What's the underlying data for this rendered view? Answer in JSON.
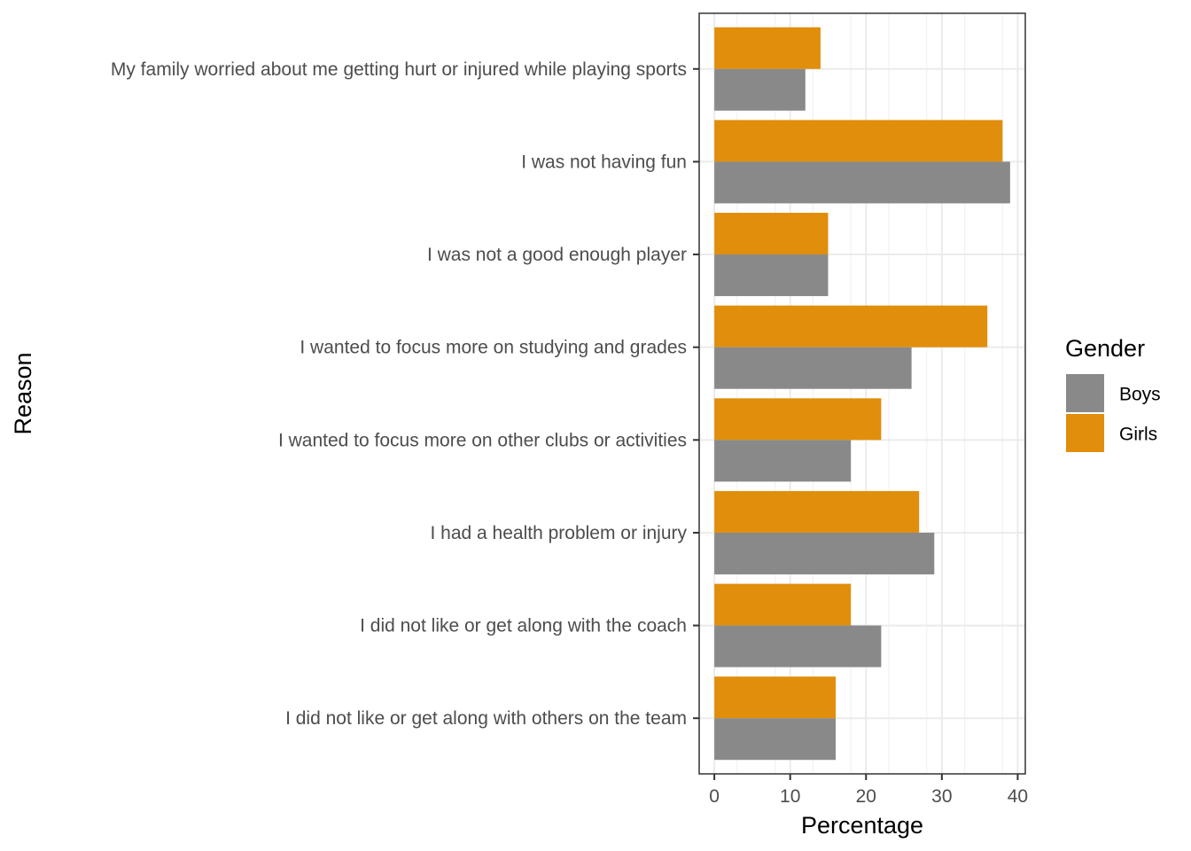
{
  "chart_data": {
    "type": "bar",
    "orientation": "horizontal",
    "categories": [
      "My family worried about me getting hurt or injured while playing sports",
      "I was not having fun",
      "I was not a good enough player",
      "I wanted to focus more on studying and grades",
      "I wanted to focus more on other clubs or activities",
      "I had a health problem or injury",
      "I did not like or get along with the coach",
      "I did not like or get along with others on the team"
    ],
    "series": [
      {
        "name": "Girls",
        "color": "#E08E0B",
        "values": [
          14,
          38,
          15,
          36,
          22,
          27,
          18,
          16
        ]
      },
      {
        "name": "Boys",
        "color": "#898989",
        "values": [
          12,
          39,
          15,
          26,
          18,
          29,
          22,
          16
        ]
      }
    ],
    "xlabel": "Percentage",
    "ylabel": "Reason",
    "xlim": [
      -2,
      41
    ],
    "xticks": [
      0,
      10,
      20,
      30,
      40
    ],
    "legend": {
      "title": "Gender",
      "position": "right",
      "entries": [
        {
          "name": "Boys",
          "color": "#898989"
        },
        {
          "name": "Girls",
          "color": "#E08E0B"
        }
      ]
    },
    "grid": true
  }
}
